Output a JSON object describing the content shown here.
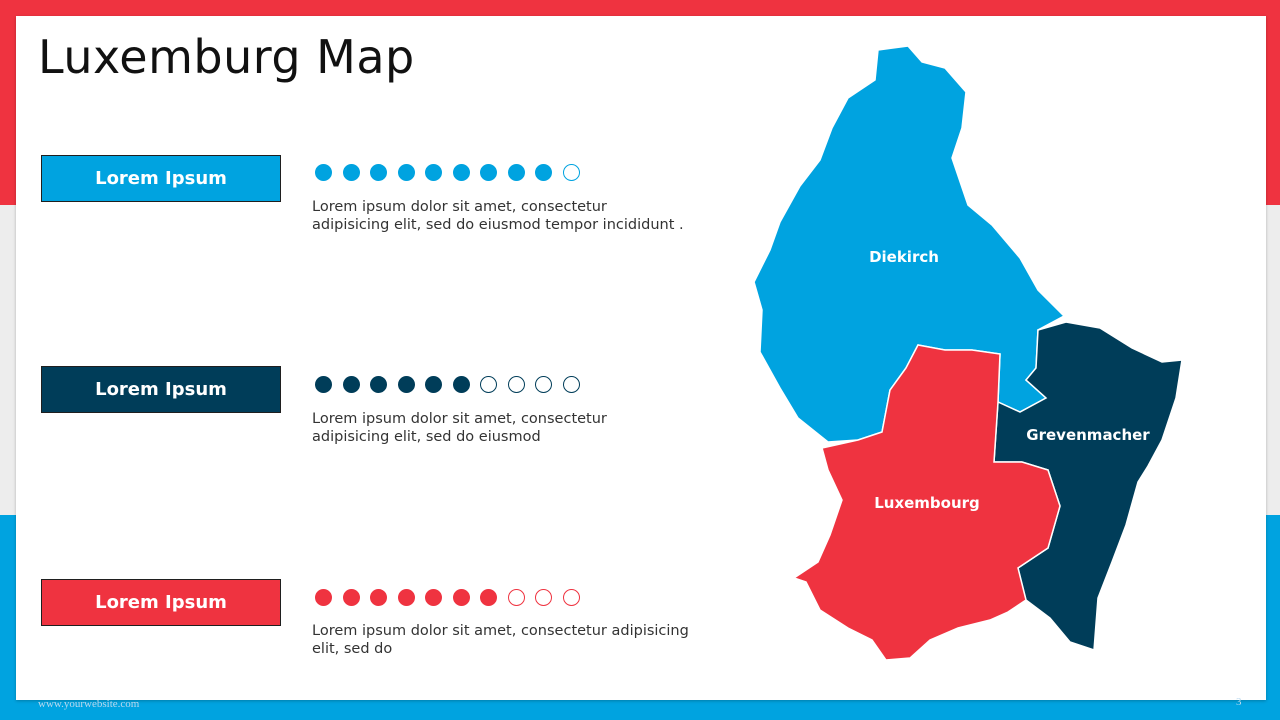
{
  "title": "Luxemburg Map",
  "colors": {
    "blue": "#00A3E0",
    "navy": "#003D59",
    "red": "#EF3340"
  },
  "items": [
    {
      "label": "Lorem Ipsum",
      "filled": 9,
      "total": 10,
      "color": "#00A3E0",
      "text_lines": [
        "Lorem ipsum dolor sit amet, consectetur",
        "adipisicing elit, sed do eiusmod tempor incididunt ."
      ]
    },
    {
      "label": "Lorem Ipsum",
      "filled": 6,
      "total": 10,
      "color": "#003D59",
      "text_lines": [
        "Lorem ipsum dolor sit amet, consectetur",
        "adipisicing elit, sed do eiusmod"
      ]
    },
    {
      "label": "Lorem Ipsum",
      "filled": 7,
      "total": 10,
      "color": "#EF3340",
      "text_lines": [
        "Lorem ipsum dolor sit amet, consectetur adipisicing",
        "elit, sed do"
      ]
    }
  ],
  "map": {
    "regions": [
      {
        "name": "Diekirch",
        "color": "#00A3E0"
      },
      {
        "name": "Grevenmacher",
        "color": "#003D59"
      },
      {
        "name": "Luxembourg",
        "color": "#EF3340"
      }
    ]
  },
  "footer": {
    "website": "www.yourwebsite.com",
    "page": "3"
  }
}
